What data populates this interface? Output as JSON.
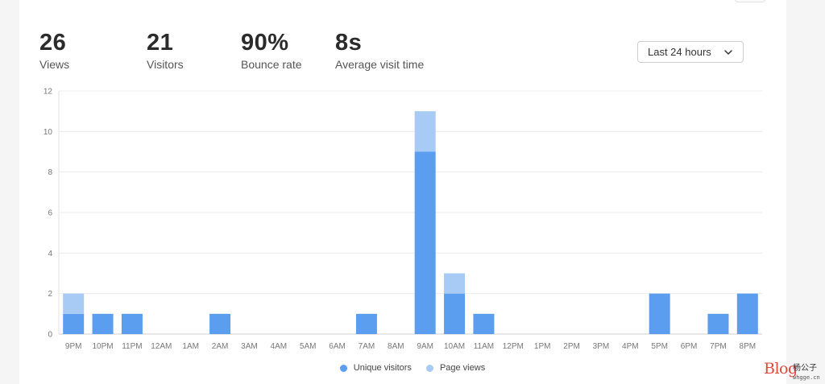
{
  "metrics": [
    {
      "value": "26",
      "label": "Views"
    },
    {
      "value": "21",
      "label": "Visitors"
    },
    {
      "value": "90%",
      "label": "Bounce rate"
    },
    {
      "value": "8s",
      "label": "Average visit time"
    }
  ],
  "range_select": {
    "value": "Last 24 hours"
  },
  "watermark": {
    "text": "Blog",
    "cn": "杨公子",
    "site": "whgge.cn"
  },
  "colors": {
    "unique_visitors": "#5b9ef0",
    "page_views": "#a7cbf5",
    "grid": "#ececec",
    "axis_text": "#777777"
  },
  "chart_data": {
    "type": "bar",
    "stacked": true,
    "categories": [
      "9PM",
      "10PM",
      "11PM",
      "12AM",
      "1AM",
      "2AM",
      "3AM",
      "4AM",
      "5AM",
      "6AM",
      "7AM",
      "8AM",
      "9AM",
      "10AM",
      "11AM",
      "12PM",
      "1PM",
      "2PM",
      "3PM",
      "4PM",
      "5PM",
      "6PM",
      "7PM",
      "8PM"
    ],
    "series": [
      {
        "name": "Unique visitors",
        "values": [
          1,
          1,
          1,
          0,
          0,
          1,
          0,
          0,
          0,
          0,
          1,
          0,
          9,
          2,
          1,
          0,
          0,
          0,
          0,
          0,
          2,
          0,
          1,
          2
        ]
      },
      {
        "name": "Page views",
        "values": [
          1,
          0,
          0,
          0,
          0,
          0,
          0,
          0,
          0,
          0,
          0,
          0,
          2,
          1,
          0,
          0,
          0,
          0,
          0,
          0,
          0,
          0,
          0,
          0
        ]
      }
    ],
    "yticks": [
      "0",
      "2",
      "4",
      "6",
      "8",
      "10",
      "12"
    ],
    "ylim": [
      0,
      12
    ],
    "legend_position": "bottom"
  }
}
